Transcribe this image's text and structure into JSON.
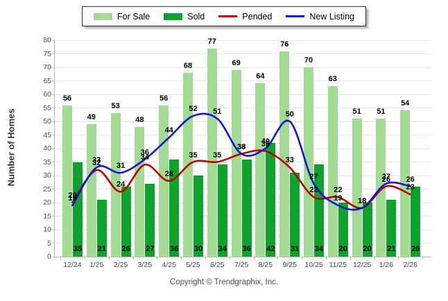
{
  "legend": {
    "items": [
      {
        "label": "For Sale",
        "type": "bar",
        "color": "#a3db94"
      },
      {
        "label": "Sold",
        "type": "bar",
        "color": "#0ba32b"
      },
      {
        "label": "Pended",
        "type": "line",
        "color": "#c00000"
      },
      {
        "label": "New Listing",
        "type": "line",
        "color": "#1212dd"
      }
    ]
  },
  "y_axis": {
    "title": "Number of Homes",
    "ticks": [
      0,
      5,
      10,
      15,
      20,
      25,
      30,
      35,
      40,
      45,
      50,
      55,
      60,
      65,
      70,
      75,
      80
    ]
  },
  "footer": {
    "copyright": "Copyright © Trendgraphix, Inc."
  },
  "chart_data": {
    "type": "bar",
    "subtype": "grouped bars with smoothed line overlays",
    "categories": [
      "12/24",
      "1/25",
      "2/25",
      "3/25",
      "4/25",
      "5/25",
      "6/25",
      "7/25",
      "8/25",
      "9/25",
      "10/25",
      "11/25",
      "12/25",
      "1/26",
      "2/26"
    ],
    "series": [
      {
        "name": "For Sale",
        "type": "bar",
        "color": "#a3db94",
        "values": [
          56,
          49,
          53,
          48,
          56,
          68,
          77,
          69,
          64,
          76,
          70,
          63,
          51,
          51,
          54
        ]
      },
      {
        "name": "Sold",
        "type": "bar",
        "color": "#0ba32b",
        "values": [
          35,
          21,
          26,
          27,
          36,
          30,
          34,
          36,
          42,
          31,
          34,
          20,
          20,
          21,
          26
        ]
      },
      {
        "name": "Pended",
        "type": "line",
        "color": "#c00000",
        "values": [
          20,
          32,
          24,
          34,
          28,
          35,
          35,
          38,
          39,
          33,
          22,
          22,
          18,
          26,
          23
        ]
      },
      {
        "name": "New Listing",
        "type": "line",
        "color": "#1212dd",
        "values": [
          19,
          33,
          31,
          36,
          44,
          52,
          51,
          38,
          40,
          50,
          27,
          19,
          18,
          27,
          26
        ]
      }
    ],
    "title": "",
    "xlabel": "",
    "ylabel": "Number of Homes",
    "ylim": [
      0,
      80
    ],
    "grid": true,
    "legend_position": "top-center",
    "value_labels": "shown for every bar and line point"
  }
}
